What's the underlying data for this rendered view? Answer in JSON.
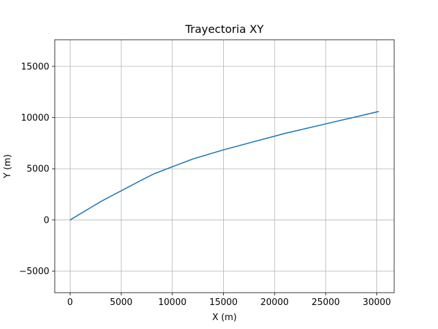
{
  "chart_data": {
    "type": "line",
    "title": "Trayectoria XY",
    "xlabel": "X (m)",
    "ylabel": "Y (m)",
    "xlim": [
      -1500,
      31700
    ],
    "ylim": [
      -7100,
      17600
    ],
    "xticks": [
      0,
      5000,
      10000,
      15000,
      20000,
      25000,
      30000
    ],
    "yticks": [
      -5000,
      0,
      5000,
      10000,
      15000
    ],
    "xtick_labels": [
      "0",
      "5000",
      "10000",
      "15000",
      "20000",
      "25000",
      "30000"
    ],
    "ytick_labels": [
      "−5000",
      "0",
      "5000",
      "10000",
      "15000"
    ],
    "grid": true,
    "color": "#1f77b4",
    "series": [
      {
        "x": [
          0,
          1000,
          2000,
          3000,
          5000,
          7000,
          8200,
          10000,
          12000,
          15000,
          18000,
          21000,
          24000,
          27000,
          30200
        ],
        "y": [
          0,
          600,
          1200,
          1800,
          2850,
          3900,
          4500,
          5200,
          5950,
          6850,
          7650,
          8450,
          9150,
          9850,
          10600
        ]
      }
    ]
  }
}
